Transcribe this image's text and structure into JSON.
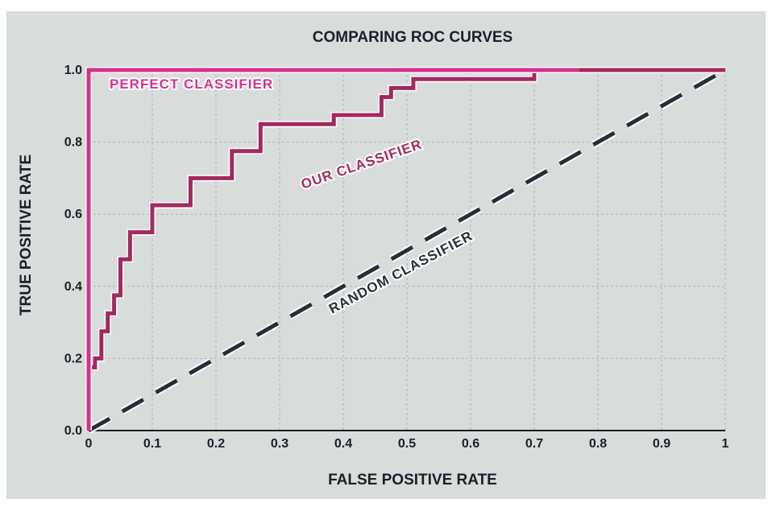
{
  "chart_data": {
    "type": "line",
    "title": "COMPARING ROC CURVES",
    "xlabel": "FALSE POSITIVE RATE",
    "ylabel": "TRUE POSITIVE RATE",
    "xlim": [
      0,
      1
    ],
    "ylim": [
      0,
      1
    ],
    "x_ticks": [
      "0",
      "0.1",
      "0.2",
      "0.3",
      "0.4",
      "0.5",
      "0.6",
      "0.7",
      "0.8",
      "0.9",
      "1"
    ],
    "y_ticks": [
      "0.0",
      "0.2",
      "0.4",
      "0.6",
      "0.8",
      "1.0"
    ],
    "x_tick_values": [
      0,
      0.1,
      0.2,
      0.3,
      0.4,
      0.5,
      0.6,
      0.7,
      0.8,
      0.9,
      1
    ],
    "y_tick_values": [
      0,
      0.2,
      0.4,
      0.6,
      0.8,
      1.0
    ],
    "grid": true,
    "background": "#d8dddb",
    "series": [
      {
        "name": "PERFECT CLASSIFIER",
        "color": "#d8308c",
        "style": "solid",
        "x": [
          0,
          0,
          0.77
        ],
        "y": [
          0,
          1.0,
          1.0
        ]
      },
      {
        "name": "OUR CLASSIFIER",
        "color": "#a3295f",
        "style": "solid",
        "x": [
          0,
          0,
          0.01,
          0.01,
          0.02,
          0.02,
          0.03,
          0.03,
          0.04,
          0.04,
          0.05,
          0.05,
          0.065,
          0.065,
          0.1,
          0.1,
          0.16,
          0.16,
          0.225,
          0.225,
          0.27,
          0.27,
          0.385,
          0.385,
          0.46,
          0.46,
          0.475,
          0.475,
          0.51,
          0.51,
          0.7,
          0.7,
          0.775,
          0.775,
          1.0
        ],
        "y": [
          0,
          0.175,
          0.175,
          0.2,
          0.2,
          0.275,
          0.275,
          0.325,
          0.325,
          0.375,
          0.375,
          0.475,
          0.475,
          0.55,
          0.55,
          0.625,
          0.625,
          0.7,
          0.7,
          0.775,
          0.775,
          0.85,
          0.85,
          0.875,
          0.875,
          0.925,
          0.925,
          0.95,
          0.95,
          0.975,
          0.975,
          1.0,
          1.0,
          1.0,
          1.0
        ]
      },
      {
        "name": "RANDOM CLASSIFIER",
        "color": "#262e3a",
        "style": "dashed",
        "x": [
          0,
          1
        ],
        "y": [
          0,
          1
        ]
      }
    ]
  }
}
